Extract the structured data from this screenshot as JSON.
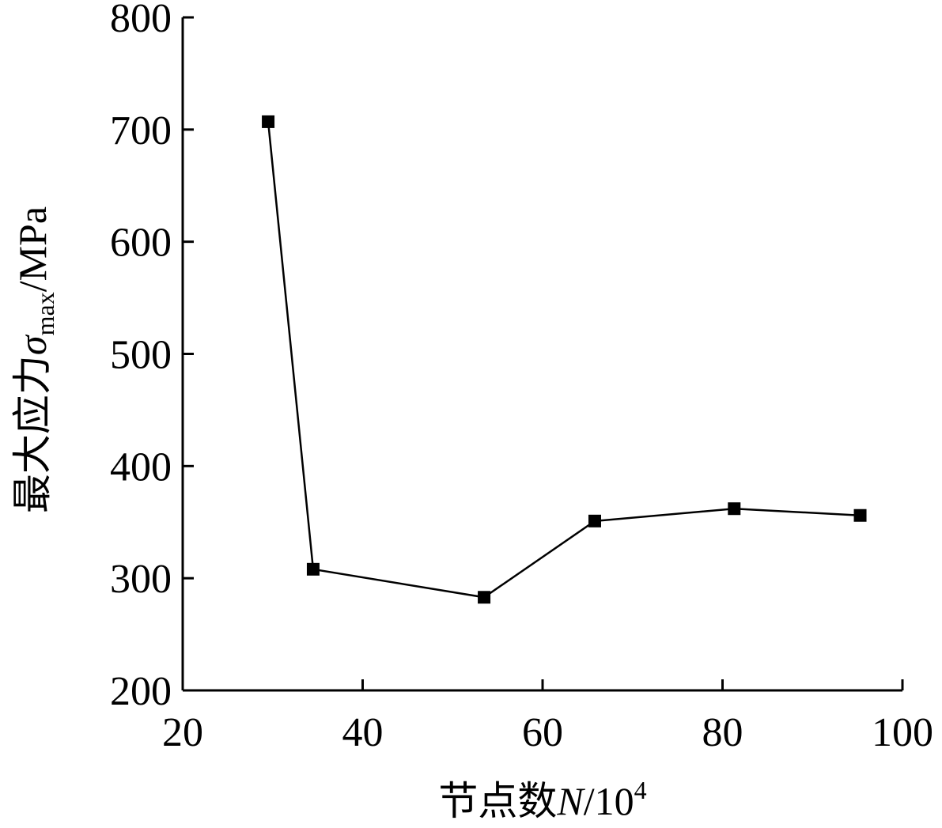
{
  "chart_data": {
    "type": "line",
    "title": "",
    "xlabel": {
      "prefix": "节点数",
      "variable": "N",
      "unit": "/10",
      "superscript": "4"
    },
    "ylabel": {
      "prefix": "最大应力",
      "variable": "σ",
      "subscript": "max",
      "unit": "/MPa"
    },
    "xlim": [
      20,
      100
    ],
    "ylim": [
      200,
      800
    ],
    "xticks": [
      20,
      40,
      60,
      80,
      100
    ],
    "yticks": [
      200,
      300,
      400,
      500,
      600,
      700,
      800
    ],
    "grid": false,
    "legend": "none",
    "series": [
      {
        "marker": "square",
        "color": "#000000",
        "x": [
          29.5,
          34.5,
          53.5,
          65.8,
          81.3,
          95.3
        ],
        "y": [
          707,
          308,
          283,
          351,
          362,
          356
        ]
      }
    ]
  }
}
